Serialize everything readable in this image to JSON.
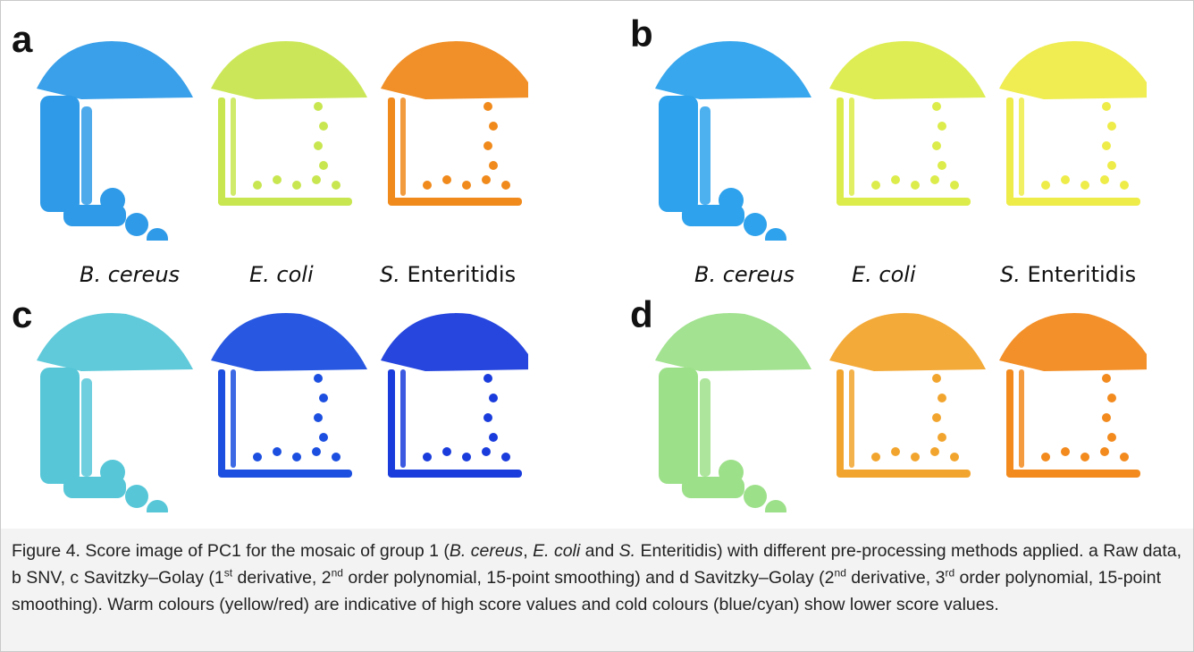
{
  "figure": {
    "panels": [
      {
        "letter": "a",
        "colors": [
          "#2f9be8",
          "#c8e650",
          "#f08a1c"
        ]
      },
      {
        "letter": "b",
        "colors": [
          "#2ea2ec",
          "#dcec4a",
          "#eeec48"
        ]
      },
      {
        "letter": "c",
        "colors": [
          "#57c7d8",
          "#1c4fe0",
          "#1a3cdc"
        ]
      },
      {
        "letter": "d",
        "colors": [
          "#9de08a",
          "#f2a52e",
          "#f28a1e"
        ]
      }
    ],
    "species_labels": {
      "b_cereus": "B. cereus",
      "e_coli": "E. coli",
      "s_prefix": "S.",
      "s_name": "Enteritidis"
    }
  },
  "caption": {
    "t1": "Figure 4. Score image of PC1 for the mosaic of group 1 (",
    "i1": "B. cereus",
    "t2": ", ",
    "i2": "E. coli",
    "t3": " and ",
    "i3": "S.",
    "t4": " Enteritidis) with different pre-processing methods applied. a Raw data, b SNV, c Savitzky–Golay (1",
    "s1": "st",
    "t5": " derivative, 2",
    "s2": "nd",
    "t6": " order polynomial, 15-point smoothing) and d Savitzky–Golay (2",
    "s3": "nd",
    "t7": " derivative, 3",
    "s4": "rd",
    "t8": " order polynomial, 15-point smoothing). Warm colours (yellow/red) are indicative of high score values and cold colours (blue/cyan) show lower score values."
  }
}
